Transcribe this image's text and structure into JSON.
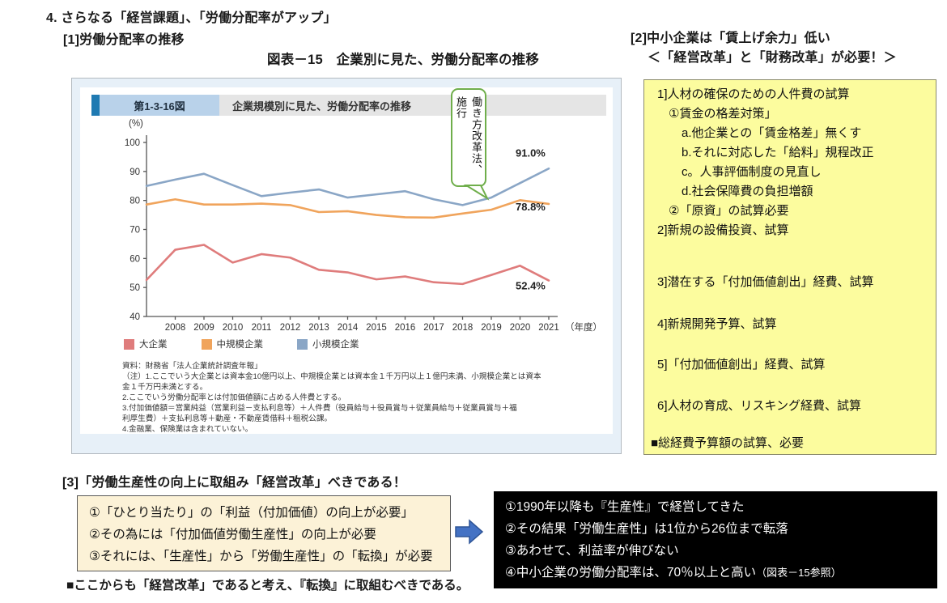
{
  "page": {
    "title": "4. さらなる「経営課題」、「労働分配率がアップ」",
    "section1_heading": "[1]労働分配率の推移",
    "figure_title": "図表－15　企業別に見た、労働分配率の推移",
    "section2_heading": "[2]中小企業は「賃上げ余力」低い",
    "section2_subheading": "＜「経営改革」と「財務改革」が必要！＞",
    "section3_heading": "[3]「労働生産性の向上に取組み「経営改革」べきである！",
    "bottom_note": "■ここからも「経営改革」であると考え、『転換』に取組むべきである。"
  },
  "chart": {
    "badge": "第1-3-16図",
    "header_title": "企業規模別に見た、労働分配率の推移",
    "y_unit_label": "(%)",
    "x_unit_label": "（年度）",
    "callout": "働き方改革法、施行",
    "source": "資料：財務省「法人企業統計調査年報」",
    "notes": [
      "（注）1.ここでいう大企業とは資本金10億円以上、中規模企業とは資本金１千万円以上１億円未満、小規模企業とは資本",
      "金１千万円未満とする。",
      "2.ここでいう労働分配率とは付加価値額に占める人件費とする。",
      "3.付加価値額＝営業純益（営業利益－支払利息等）＋人件費（役員給与＋役員賞与＋従業員給与＋従業員賞与＋福",
      "利厚生費）＋支払利息等＋動産・不動産賃借料＋租税公課。",
      "4.金融業、保険業は含まれていない。"
    ],
    "chart_data": {
      "type": "line",
      "title": "企業規模別に見た、労働分配率の推移",
      "x": [
        2007,
        2008,
        2009,
        2010,
        2011,
        2012,
        2013,
        2014,
        2015,
        2016,
        2017,
        2018,
        2019,
        2020,
        2021
      ],
      "x_tick_labels": [
        "2008",
        "2009",
        "2010",
        "2011",
        "2012",
        "2013",
        "2014",
        "2015",
        "2016",
        "2017",
        "2018",
        "2019",
        "2020",
        "2021"
      ],
      "xlabel": "（年度）",
      "ylabel": "(%)",
      "ylim": [
        40,
        100
      ],
      "yticks": [
        40,
        50,
        60,
        70,
        80,
        90,
        100
      ],
      "grid": false,
      "legend_position": "bottom",
      "series": [
        {
          "name": "大企業",
          "color": "#df7c7c",
          "values": [
            52.6,
            63.0,
            64.7,
            58.6,
            61.5,
            60.3,
            56.1,
            55.2,
            52.8,
            53.8,
            51.8,
            51.2,
            54.3,
            57.5,
            52.4
          ],
          "end_label": "52.4%"
        },
        {
          "name": "中規模企業",
          "color": "#f0a45c",
          "values": [
            78.6,
            80.4,
            78.6,
            78.6,
            78.9,
            78.4,
            76.0,
            76.3,
            75.0,
            74.2,
            74.1,
            75.5,
            76.8,
            80.1,
            78.8
          ],
          "end_label": "78.8%"
        },
        {
          "name": "小規模企業",
          "color": "#8aa6c6",
          "values": [
            85.0,
            87.2,
            89.2,
            85.3,
            81.5,
            82.7,
            83.8,
            81.0,
            82.1,
            83.2,
            80.4,
            78.4,
            81.0,
            86.0,
            91.0
          ],
          "end_label": "91.0%"
        }
      ],
      "annotation": {
        "text": "働き方改革法、施行",
        "points_to_x": 2019,
        "points_to_series": "小規模企業"
      }
    }
  },
  "wage_box": {
    "lines": [
      "1]人材の確保のための人件費の試算",
      "①賃金の格差対策」",
      "a.他企業との「賃金格差」無くす",
      "b.それに対応した「給料」規程改正",
      "c。人事評価制度の見直し",
      "d.社会保障費の負担増額",
      "②「原資」の試算必要",
      "2]新規の設備投資、試算",
      "3]潜在する「付加価値創出」経費、試算",
      "4]新規開発予算、試算",
      "5]「付加価値創出」経費、試算",
      "6]人材の育成、リスキング経費、試算",
      "■総経費予算額の試算、必要"
    ]
  },
  "productivity_box": {
    "lines": [
      "①「ひとり当たり」の「利益（付加価値）の向上が必要」",
      "②その為には「付加価値労働生産性」の向上が必要",
      "③それには、「生産性」から「労働生産性」の「転換」が必要"
    ]
  },
  "result_box": {
    "lines": [
      "①1990年以降も『生産性』で経営してきた",
      "②その結果「労働生産性」は1位から26位まで転落",
      "③あわせて、利益率が伸びない",
      "④中小企業の労働分配率は、70％以上と高い"
    ],
    "line4_suffix": "（図表－15参照）"
  }
}
